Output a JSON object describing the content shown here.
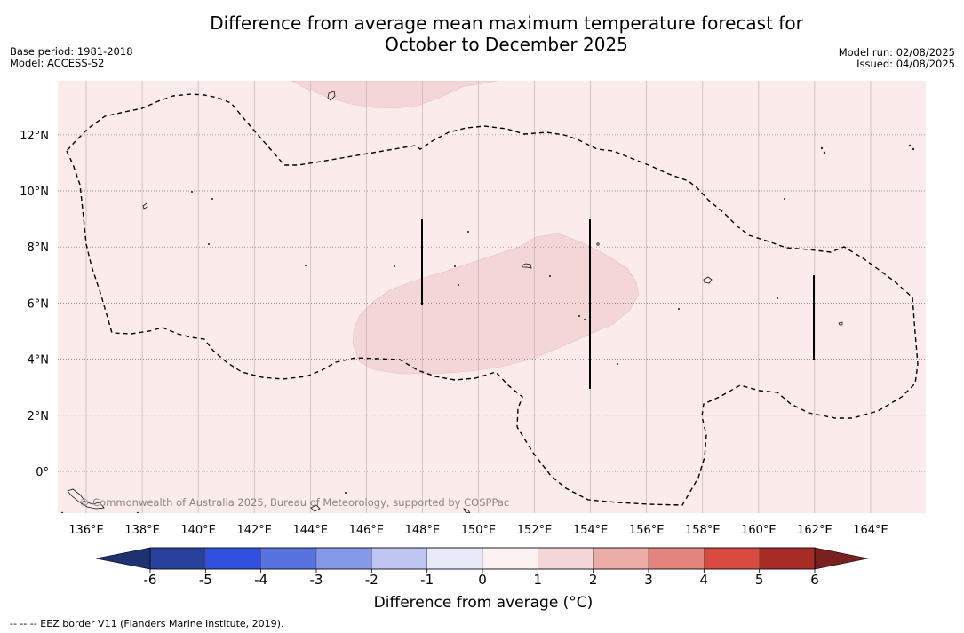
{
  "header": {
    "title_line1": "Difference from average mean maximum temperature forecast for",
    "title_line2": "October to December 2025",
    "base_period": "Base period: 1981-2018",
    "model": "Model: ACCESS-S2",
    "model_run": "Model run: 02/08/2025",
    "issued": "Issued: 04/08/2025"
  },
  "map": {
    "background_color": "#fbebea",
    "anomaly_1_2_color": "#f3d6d5",
    "lon_labels": [
      "136°E",
      "138°E",
      "140°E",
      "142°E",
      "144°E",
      "146°E",
      "148°E",
      "150°E",
      "152°E",
      "154°E",
      "156°E",
      "158°E",
      "160°E",
      "162°E",
      "164°E"
    ],
    "lat_labels": [
      "12°N",
      "10°N",
      "8°N",
      "6°N",
      "4°N",
      "2°N",
      "0°"
    ],
    "credit": "© Commonwealth of Australia 2025, Bureau of Meteorology, supported by COSPPac"
  },
  "colorbar": {
    "label": "Difference from average (°C)",
    "ticks": [
      "-6",
      "-5",
      "-4",
      "-3",
      "-2",
      "-1",
      "0",
      "1",
      "2",
      "3",
      "4",
      "5",
      "6"
    ],
    "colors": [
      "#29409c",
      "#3050e0",
      "#5872e0",
      "#8698e8",
      "#c0c6f2",
      "#e8eafa",
      "#fcf2f2",
      "#f3d6d5",
      "#ecaca7",
      "#e4847e",
      "#d84940",
      "#a82c26"
    ],
    "under_color": "#1e3272",
    "over_color": "#7a2120"
  },
  "footnote": "-- -- -- EEZ border V11 (Flanders Marine Institute, 2019)."
}
